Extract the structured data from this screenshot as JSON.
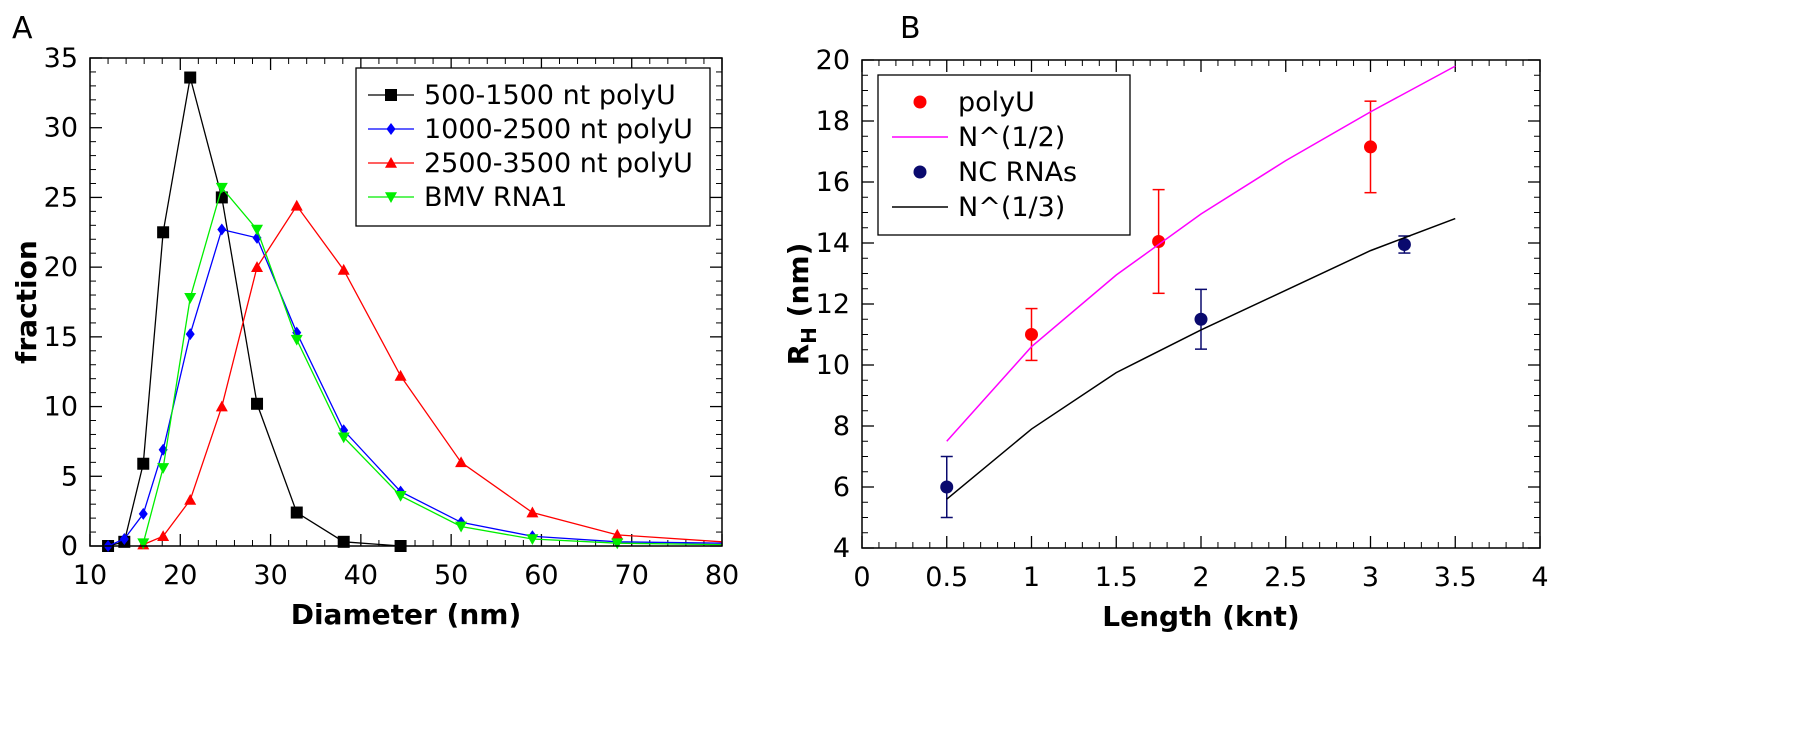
{
  "panels": [
    {
      "letter": "A"
    },
    {
      "letter": "B"
    }
  ],
  "chart_data": [
    {
      "type": "line",
      "panel": "A",
      "title": "",
      "xlabel": "Diameter (nm)",
      "ylabel": "fraction",
      "xlim": [
        10,
        80
      ],
      "ylim": [
        0,
        35
      ],
      "xticks": [
        10,
        20,
        30,
        40,
        50,
        60,
        70,
        80
      ],
      "yticks": [
        0,
        5,
        10,
        15,
        20,
        25,
        30,
        35
      ],
      "grid": false,
      "legend_position": "top-right",
      "series": [
        {
          "name": "500-1500 nt polyU",
          "color": "#000000",
          "marker": "square",
          "x": [
            12,
            13.8,
            15.9,
            18.1,
            21.1,
            24.6,
            28.5,
            32.9,
            38.1,
            44.4
          ],
          "y": [
            0,
            0.3,
            5.9,
            22.5,
            33.6,
            25.0,
            10.2,
            2.4,
            0.3,
            0
          ]
        },
        {
          "name": "1000-2500 nt polyU",
          "color": "#0000ff",
          "marker": "diamond",
          "x": [
            12,
            13.8,
            15.9,
            18.1,
            21.1,
            24.6,
            28.5,
            32.9,
            38.1,
            44.4,
            51.1,
            59.0,
            68.4,
            80
          ],
          "y": [
            0,
            0.5,
            2.3,
            6.9,
            15.2,
            22.7,
            22.1,
            15.3,
            8.3,
            3.9,
            1.7,
            0.7,
            0.3,
            0.2
          ]
        },
        {
          "name": "2500-3500 nt polyU",
          "color": "#ff0000",
          "marker": "triangle-up",
          "x": [
            15.9,
            18.1,
            21.1,
            24.6,
            28.5,
            32.9,
            38.1,
            44.4,
            51.1,
            59.0,
            68.4,
            80
          ],
          "y": [
            0.1,
            0.7,
            3.3,
            10.0,
            20.0,
            24.4,
            19.8,
            12.2,
            6.0,
            2.4,
            0.8,
            0.3
          ]
        },
        {
          "name": "BMV RNA1",
          "color": "#00ee00",
          "marker": "triangle-down",
          "x": [
            15.9,
            18.1,
            21.1,
            24.6,
            28.5,
            32.9,
            38.1,
            44.4,
            51.1,
            59.0,
            68.4,
            80
          ],
          "y": [
            0.2,
            5.6,
            17.8,
            25.7,
            22.7,
            14.8,
            7.8,
            3.6,
            1.4,
            0.5,
            0.2,
            0.1
          ]
        }
      ]
    },
    {
      "type": "scatter",
      "panel": "B",
      "title": "",
      "xlabel": "Length (knt)",
      "ylabel": "R",
      "ylabel_subscript": "H",
      "ylabel_unit": " (nm)",
      "xlim": [
        0,
        4
      ],
      "ylim": [
        4,
        20
      ],
      "xticks": [
        "0",
        "0.5",
        "1",
        "1.5",
        "2",
        "2.5",
        "3",
        "3.5",
        "4"
      ],
      "yticks": [
        4,
        6,
        8,
        10,
        12,
        14,
        16,
        18,
        20
      ],
      "grid": false,
      "legend_position": "top-left",
      "series": [
        {
          "name": "polyU",
          "kind": "points",
          "color": "#ff0000",
          "x": [
            1.0,
            1.75,
            3.0
          ],
          "y": [
            11.0,
            14.05,
            17.15
          ],
          "err": [
            0.85,
            1.7,
            1.5
          ]
        },
        {
          "name": "N^(1/2)",
          "kind": "line",
          "color": "#ff00ff",
          "x": [
            0.5,
            1.0,
            1.5,
            2.0,
            2.5,
            3.0,
            3.5
          ],
          "y": [
            7.5,
            10.6,
            12.95,
            14.95,
            16.7,
            18.3,
            19.8
          ]
        },
        {
          "name": "NC RNAs",
          "kind": "points",
          "color": "#0a0a6e",
          "x": [
            0.5,
            2.0,
            3.2
          ],
          "y": [
            6.0,
            11.5,
            13.95
          ],
          "err": [
            1.0,
            0.98,
            0.28
          ]
        },
        {
          "name": "N^(1/3)",
          "kind": "line",
          "color": "#000000",
          "x": [
            0.5,
            1.0,
            1.5,
            2.0,
            2.5,
            3.0,
            3.5
          ],
          "y": [
            5.6,
            7.9,
            9.75,
            11.15,
            12.45,
            13.75,
            14.8
          ]
        }
      ]
    }
  ]
}
